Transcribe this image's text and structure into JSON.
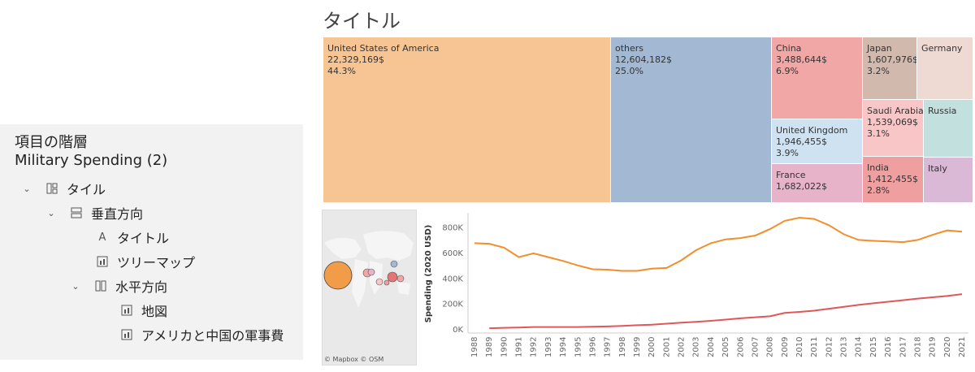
{
  "tree": {
    "heading": "項目の階層",
    "sheet": "Military Spending (2)",
    "items": [
      {
        "label": "タイル",
        "icon": "tile-layout-icon",
        "level": 0,
        "expanded": true
      },
      {
        "label": "垂直方向",
        "icon": "vertical-container-icon",
        "level": 1,
        "expanded": true
      },
      {
        "label": "タイトル",
        "icon": "text-object-icon",
        "level": 2
      },
      {
        "label": "ツリーマップ",
        "icon": "sheet-icon",
        "level": 2
      },
      {
        "label": "水平方向",
        "icon": "horizontal-container-icon",
        "level": 1,
        "expanded": true
      },
      {
        "label": "地図",
        "icon": "sheet-icon",
        "level": 3
      },
      {
        "label": "アメリカと中国の軍事費",
        "icon": "sheet-icon",
        "level": 3
      }
    ]
  },
  "dashboard": {
    "title": "タイトル",
    "treemap": [
      {
        "country": "United States of America",
        "value": "22,329,169$",
        "pct": "44.3%",
        "color": "#f7c594"
      },
      {
        "country": "others",
        "value": "12,604,182$",
        "pct": "25.0%",
        "color": "#a2b8d3"
      },
      {
        "country": "China",
        "value": "3,488,644$",
        "pct": "6.9%",
        "color": "#f0a7a6"
      },
      {
        "country": "United Kingdom",
        "value": "1,946,455$",
        "pct": "3.9%",
        "color": "#cfe2f2"
      },
      {
        "country": "France",
        "value": "1,682,022$",
        "pct": "",
        "color": "#e7b3c9"
      },
      {
        "country": "Japan",
        "value": "1,607,976$",
        "pct": "3.2%",
        "color": "#d2b9ad"
      },
      {
        "country": "Germany",
        "value": "",
        "pct": "",
        "color": "#eedad2"
      },
      {
        "country": "Saudi Arabia",
        "value": "1,539,069$",
        "pct": "3.1%",
        "color": "#f8c6c6"
      },
      {
        "country": "Russia",
        "value": "",
        "pct": "",
        "color": "#c2e0de"
      },
      {
        "country": "India",
        "value": "1,412,455$",
        "pct": "2.8%",
        "color": "#ef9fa0"
      },
      {
        "country": "Italy",
        "value": "",
        "pct": "",
        "color": "#d9b9d6"
      }
    ],
    "map_credit": "© Mapbox © OSM"
  },
  "chart_data": {
    "type": "line",
    "ylabel": "Spending (2020 USD)",
    "ylim": [
      0,
      880000
    ],
    "yticks": [
      "0K",
      "200K",
      "400K",
      "600K",
      "800K"
    ],
    "x": [
      1988,
      1989,
      1990,
      1991,
      1992,
      1993,
      1994,
      1995,
      1996,
      1997,
      1998,
      1999,
      2000,
      2001,
      2002,
      2003,
      2004,
      2005,
      2006,
      2007,
      2008,
      2009,
      2010,
      2011,
      2012,
      2013,
      2014,
      2015,
      2016,
      2017,
      2018,
      2019,
      2020,
      2021
    ],
    "series": [
      {
        "color": "#f28e2b",
        "values": [
          680000,
          675000,
          645000,
          570000,
          600000,
          570000,
          540000,
          505000,
          475000,
          472000,
          462000,
          462000,
          480000,
          485000,
          545000,
          625000,
          680000,
          710000,
          720000,
          740000,
          790000,
          855000,
          880000,
          870000,
          820000,
          750000,
          705000,
          698000,
          693000,
          688000,
          705000,
          745000,
          780000,
          770000
        ]
      },
      {
        "color": "#e15759",
        "values": [
          null,
          12000,
          15000,
          18000,
          22000,
          22000,
          22000,
          22000,
          24000,
          26000,
          30000,
          36000,
          40000,
          48000,
          56000,
          62000,
          70000,
          80000,
          90000,
          98000,
          106000,
          132000,
          140000,
          150000,
          165000,
          180000,
          195000,
          208000,
          220000,
          232000,
          245000,
          255000,
          265000,
          280000
        ]
      }
    ]
  }
}
